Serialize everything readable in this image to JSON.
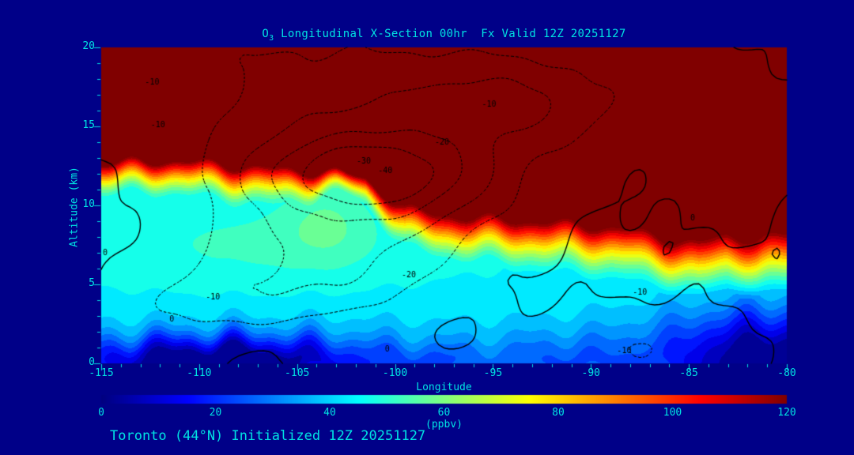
{
  "window": {
    "bg": "#000088",
    "text_color": "#00E2E2",
    "contour_color": "#000000"
  },
  "title": {
    "prefix": "O",
    "sub": "3",
    "rest": " Longitudinal X-Section 00hr  Fx Valid 12Z 20251127"
  },
  "caption": "Toronto (44°N) Initialized 12Z 20251127",
  "chart_data": {
    "type": "heatmap",
    "title": "O3 Longitudinal X-Section 00hr  Fx Valid 12Z 20251127",
    "xlabel": "Longitude",
    "ylabel": "Altitude (km)",
    "x_range": [
      -115,
      -80
    ],
    "y_range": [
      0,
      20
    ],
    "x_ticks": [
      -115,
      -110,
      -105,
      -100,
      -95,
      -90,
      -85,
      -80
    ],
    "y_ticks": [
      0,
      5,
      10,
      15,
      20
    ],
    "x_minor_step": 1,
    "y_minor_step": 1,
    "grid": false,
    "units": "ppbv",
    "level_step": 5,
    "colorbar": {
      "label": "(ppbv)",
      "min": 0,
      "max": 120,
      "ticks": [
        0,
        20,
        40,
        60,
        80,
        100,
        120
      ],
      "colormap": "jet",
      "orientation": "horizontal",
      "position": "bottom"
    },
    "field_model": {
      "field": "ozone_ppbv",
      "saturation": 135,
      "base_mid": 45,
      "transition_amp": 90,
      "transition_pow": 1.35,
      "transition_thickness_west_east": [
        2.4,
        4.2
      ],
      "transition_pinch": {
        "lon": -102.5,
        "lw": 2.5,
        "factor": 0.45
      },
      "tropopause_km": [
        [
          -115,
          12.9
        ],
        [
          -112,
          13.15
        ],
        [
          -109,
          12.95
        ],
        [
          -106,
          12.6
        ],
        [
          -103,
          12.35
        ],
        [
          -101.5,
          11.9
        ],
        [
          -100.3,
          10.8
        ],
        [
          -99.5,
          10.15
        ],
        [
          -98,
          9.85
        ],
        [
          -96,
          9.6
        ],
        [
          -93,
          9.4
        ],
        [
          -90,
          9.15
        ],
        [
          -88,
          8.9
        ],
        [
          -86,
          8.3
        ],
        [
          -84.5,
          8.05
        ],
        [
          -83,
          8.55
        ],
        [
          -81.5,
          8.3
        ],
        [
          -80,
          8.6
        ]
      ],
      "anomalies": [
        {
          "amp": 8,
          "lon": -103.5,
          "lw": 2.2,
          "alt": 9,
          "aw": 2.5
        },
        {
          "amp": 6,
          "lon": -107,
          "lw": 8,
          "alt": 7.5,
          "aw": 2.8
        },
        {
          "amp": -6,
          "lon": -97.5,
          "lw": 30,
          "alt": 1,
          "aw": 3
        },
        {
          "amp": -48,
          "lon": -109,
          "lw": 7.5,
          "alt": 0,
          "aw": 1.7
        },
        {
          "amp": -45,
          "lon": -80.5,
          "lw": 6,
          "alt": 0,
          "aw": 3.4
        },
        {
          "amp": -14,
          "lon": -91.5,
          "lw": 4,
          "alt": 0,
          "aw": 1.8
        },
        {
          "amp": -10,
          "lon": -98,
          "lw": 3,
          "alt": 0,
          "aw": 1.3
        }
      ],
      "edge_wiggle": {
        "amp_km": 0.35,
        "f1": 1.7,
        "f2": 3.1
      }
    },
    "overlay_contours": {
      "levels_dotted": [
        -10,
        -20,
        -30,
        -40
      ],
      "levels_solid": [
        0
      ],
      "line_style": "dotted-black",
      "offset": 2.5,
      "wiggle": {
        "a1": 0.8,
        "f1": 1.1,
        "g1": 0.8,
        "a2": 0.5,
        "f2": 2.1,
        "g2": 1.3
      },
      "cells": [
        {
          "amp": -34,
          "lon": -102,
          "lw": 7.5,
          "alt": 11.5,
          "aw": 4.8
        },
        {
          "amp": -22,
          "lon": -101,
          "lw": 5,
          "alt": 12,
          "aw": 2.2
        },
        {
          "amp": -20,
          "lon": -94,
          "lw": 6,
          "alt": 16.5,
          "aw": 3
        },
        {
          "amp": -11,
          "lon": -106,
          "lw": 12,
          "alt": 19,
          "aw": 4
        },
        {
          "amp": -16,
          "lon": -104,
          "lw": 6,
          "alt": 5.5,
          "aw": 3
        },
        {
          "amp": -12,
          "lon": -109.5,
          "lw": 5,
          "alt": 3.8,
          "aw": 2.2
        },
        {
          "amp": -12,
          "lon": -88,
          "lw": 5.5,
          "alt": 1,
          "aw": 2.5
        },
        {
          "amp": -8,
          "lon": -83,
          "lw": 4,
          "alt": 14,
          "aw": 6
        },
        {
          "amp": -4,
          "lon": -99,
          "lw": 6,
          "alt": 0,
          "aw": 1.2
        },
        {
          "amp": -5,
          "lon": -114,
          "lw": 4,
          "alt": 0.5,
          "aw": 2
        }
      ],
      "labels": [
        {
          "text": "-10",
          "lon": -112.4,
          "alt": 17.8
        },
        {
          "text": "-10",
          "lon": -112.1,
          "alt": 15.1
        },
        {
          "text": "-10",
          "lon": -95.2,
          "alt": 16.4
        },
        {
          "text": "-20",
          "lon": -97.6,
          "alt": 14.0
        },
        {
          "text": "-30",
          "lon": -101.6,
          "alt": 12.8
        },
        {
          "text": "-40",
          "lon": -100.5,
          "alt": 12.2
        },
        {
          "text": "-20",
          "lon": -99.3,
          "alt": 5.6
        },
        {
          "text": "-10",
          "lon": -109.3,
          "alt": 4.2
        },
        {
          "text": "-10",
          "lon": -87.5,
          "alt": 4.5
        },
        {
          "text": "-10",
          "lon": -88.3,
          "alt": 0.8
        },
        {
          "text": "0",
          "lon": -100.4,
          "alt": 0.9
        },
        {
          "text": "0",
          "lon": -84.8,
          "alt": 9.2
        },
        {
          "text": "0",
          "lon": -114.8,
          "alt": 7.0
        },
        {
          "text": "0",
          "lon": -111.4,
          "alt": 2.8
        }
      ]
    }
  }
}
